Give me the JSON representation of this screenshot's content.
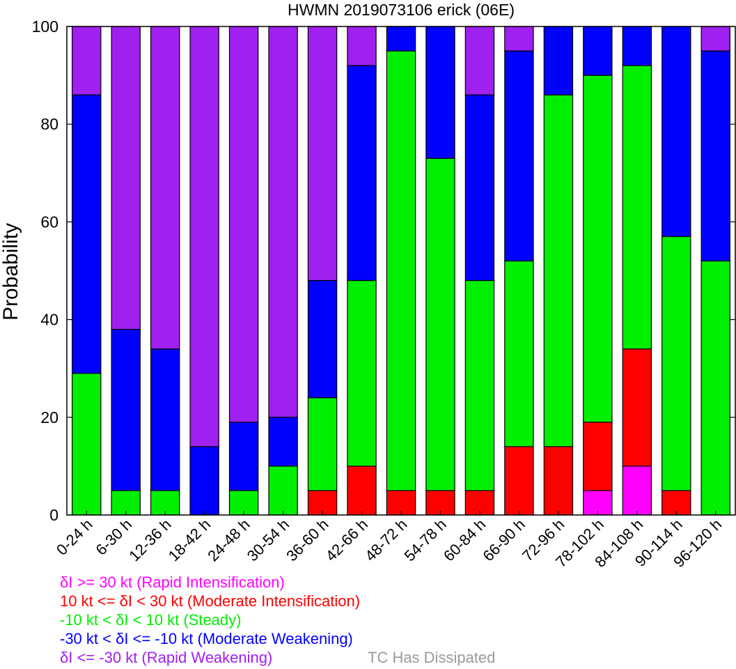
{
  "chart_data": {
    "type": "bar",
    "stacked": true,
    "title": "HWMN 2019073106 erick (06E)",
    "xlabel": "",
    "ylabel": "Probability",
    "ylim": [
      0,
      100
    ],
    "yticks": [
      "0",
      "20",
      "40",
      "60",
      "80",
      "100"
    ],
    "grid": false,
    "categories": [
      "0-24 h",
      "6-30 h",
      "12-36 h",
      "18-42 h",
      "24-48 h",
      "30-54 h",
      "36-60 h",
      "42-66 h",
      "48-72 h",
      "54-78 h",
      "60-84 h",
      "66-90 h",
      "72-96 h",
      "78-102 h",
      "84-108 h",
      "90-114 h",
      "96-120 h"
    ],
    "series": [
      {
        "name": "δI >= 30 kt (Rapid Intensification)",
        "color": "#ff00ff",
        "values": [
          0,
          0,
          0,
          0,
          0,
          0,
          0,
          0,
          0,
          0,
          0,
          0,
          0,
          5,
          10,
          0,
          0
        ]
      },
      {
        "name": "10 kt <= δI < 30 kt (Moderate Intensification)",
        "color": "#ff0000",
        "values": [
          0,
          0,
          0,
          0,
          0,
          0,
          5,
          10,
          5,
          5,
          5,
          14,
          14,
          14,
          24,
          5,
          0
        ]
      },
      {
        "name": "-10 kt < δI < 10 kt (Steady)",
        "color": "#00ee00",
        "values": [
          29,
          5,
          5,
          0,
          5,
          10,
          19,
          38,
          90,
          68,
          43,
          38,
          72,
          71,
          58,
          52,
          52
        ]
      },
      {
        "name": "-30 kt < δI <= -10 kt (Moderate Weakening)",
        "color": "#0000ff",
        "values": [
          57,
          33,
          29,
          14,
          14,
          10,
          24,
          44,
          5,
          27,
          38,
          43,
          14,
          10,
          8,
          43,
          43
        ]
      },
      {
        "name": "δI <= -30 kt (Rapid Weakening)",
        "color": "#a020f0",
        "values": [
          14,
          62,
          66,
          86,
          81,
          80,
          52,
          8,
          0,
          0,
          14,
          5,
          0,
          0,
          0,
          0,
          5
        ]
      }
    ],
    "extra_legend": {
      "label": "TC Has Dissipated",
      "color": "#999999"
    }
  }
}
